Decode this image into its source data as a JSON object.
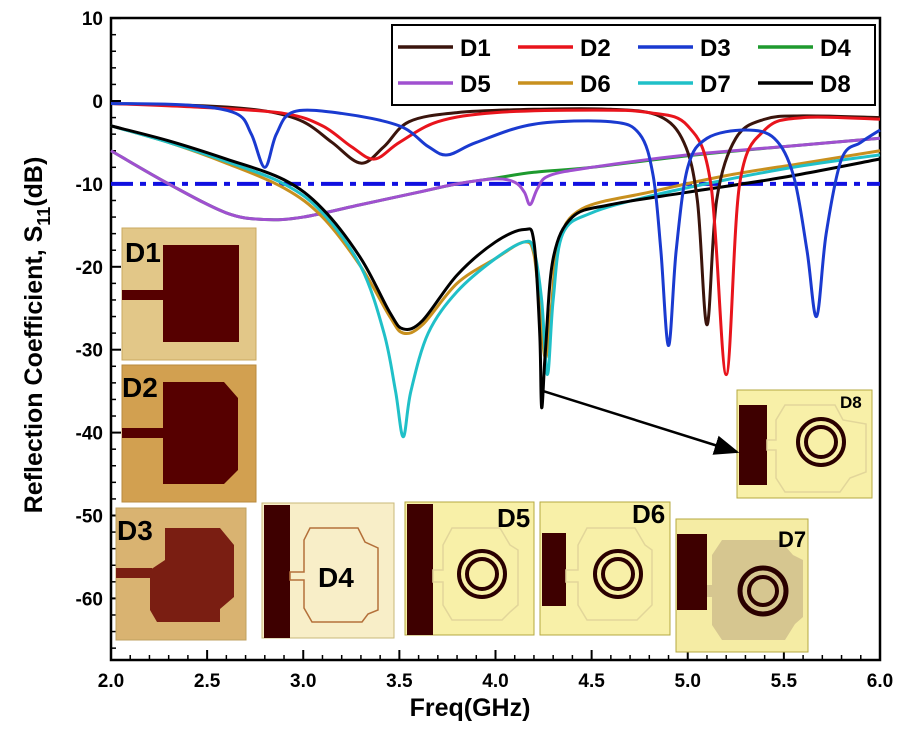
{
  "chart_data": {
    "type": "line",
    "title": "",
    "xlabel": "Freq(GHz)",
    "ylabel_main": "Reflection Coefficient, S",
    "ylabel_sub": "11",
    "ylabel_unit": "(dB)",
    "xlim": [
      2.0,
      6.0
    ],
    "ylim": [
      -65,
      10
    ],
    "xticks": [
      "2.0",
      "2.5",
      "3.0",
      "3.5",
      "4.0",
      "4.5",
      "5.0",
      "5.5",
      "6.0"
    ],
    "yticks": [
      "10",
      "0",
      "-10",
      "-20",
      "-30",
      "-40",
      "-50",
      "-60"
    ],
    "grid": false,
    "legend_position": "top-right",
    "reference_line": {
      "y": -10,
      "color": "#1010e0",
      "style": "dash-dot"
    },
    "series": [
      {
        "name": "D1",
        "color": "#3a140c",
        "points": [
          [
            2.0,
            -0.3
          ],
          [
            2.5,
            -0.6
          ],
          [
            2.8,
            -1.2
          ],
          [
            3.0,
            -2.5
          ],
          [
            3.15,
            -5
          ],
          [
            3.3,
            -7.5
          ],
          [
            3.42,
            -5.5
          ],
          [
            3.55,
            -2.5
          ],
          [
            3.8,
            -1.4
          ],
          [
            4.2,
            -1
          ],
          [
            4.6,
            -1
          ],
          [
            4.85,
            -1.8
          ],
          [
            4.98,
            -5
          ],
          [
            5.05,
            -12
          ],
          [
            5.1,
            -27
          ],
          [
            5.15,
            -12
          ],
          [
            5.25,
            -4.5
          ],
          [
            5.4,
            -2.2
          ],
          [
            5.6,
            -1.8
          ],
          [
            6.0,
            -2
          ]
        ]
      },
      {
        "name": "D2",
        "color": "#e8141c",
        "points": [
          [
            2.0,
            -0.3
          ],
          [
            2.5,
            -0.8
          ],
          [
            2.9,
            -1.5
          ],
          [
            3.1,
            -3
          ],
          [
            3.25,
            -5.5
          ],
          [
            3.37,
            -7
          ],
          [
            3.5,
            -5
          ],
          [
            3.7,
            -2.5
          ],
          [
            4.0,
            -1.4
          ],
          [
            4.5,
            -1.1
          ],
          [
            4.8,
            -1.4
          ],
          [
            5.0,
            -3
          ],
          [
            5.12,
            -10
          ],
          [
            5.2,
            -33
          ],
          [
            5.27,
            -10
          ],
          [
            5.4,
            -3.5
          ],
          [
            5.6,
            -2
          ],
          [
            6.0,
            -2.2
          ]
        ]
      },
      {
        "name": "D3",
        "color": "#1a3ad0",
        "points": [
          [
            2.0,
            -0.3
          ],
          [
            2.4,
            -0.5
          ],
          [
            2.65,
            -1.5
          ],
          [
            2.73,
            -4
          ],
          [
            2.8,
            -8
          ],
          [
            2.86,
            -4
          ],
          [
            2.95,
            -1.3
          ],
          [
            3.2,
            -1.5
          ],
          [
            3.5,
            -3
          ],
          [
            3.65,
            -5.5
          ],
          [
            3.75,
            -6.5
          ],
          [
            3.9,
            -5
          ],
          [
            4.2,
            -2.8
          ],
          [
            4.6,
            -2.5
          ],
          [
            4.75,
            -4
          ],
          [
            4.82,
            -9
          ],
          [
            4.86,
            -18
          ],
          [
            4.9,
            -29.5
          ],
          [
            4.94,
            -18
          ],
          [
            5.0,
            -8
          ],
          [
            5.1,
            -4.5
          ],
          [
            5.3,
            -3.5
          ],
          [
            5.45,
            -4.5
          ],
          [
            5.55,
            -9
          ],
          [
            5.62,
            -18
          ],
          [
            5.67,
            -26
          ],
          [
            5.72,
            -16
          ],
          [
            5.8,
            -7
          ],
          [
            5.9,
            -5
          ],
          [
            6.0,
            -3.5
          ]
        ]
      },
      {
        "name": "D4",
        "color": "#1e9a2e",
        "points": [
          [
            2.0,
            -6
          ],
          [
            2.3,
            -10
          ],
          [
            2.6,
            -13.5
          ],
          [
            2.8,
            -14.3
          ],
          [
            3.0,
            -14
          ],
          [
            3.3,
            -12.5
          ],
          [
            3.6,
            -11
          ],
          [
            3.8,
            -10
          ],
          [
            4.0,
            -9.3
          ],
          [
            4.2,
            -8.6
          ],
          [
            4.5,
            -8
          ],
          [
            5.0,
            -6.6
          ],
          [
            5.5,
            -5.5
          ],
          [
            6.0,
            -4.5
          ]
        ]
      },
      {
        "name": "D5",
        "color": "#a050d0",
        "points": [
          [
            2.0,
            -6
          ],
          [
            2.3,
            -10
          ],
          [
            2.6,
            -13.5
          ],
          [
            2.8,
            -14.3
          ],
          [
            3.0,
            -14
          ],
          [
            3.3,
            -12.5
          ],
          [
            3.6,
            -11
          ],
          [
            3.8,
            -10
          ],
          [
            4.0,
            -9.4
          ],
          [
            4.1,
            -9.8
          ],
          [
            4.15,
            -11
          ],
          [
            4.18,
            -12.5
          ],
          [
            4.22,
            -10.5
          ],
          [
            4.28,
            -9
          ],
          [
            4.5,
            -8
          ],
          [
            5.0,
            -6.5
          ],
          [
            5.5,
            -5.5
          ],
          [
            6.0,
            -4.5
          ]
        ]
      },
      {
        "name": "D6",
        "color": "#c8901e",
        "points": [
          [
            2.0,
            -3
          ],
          [
            2.3,
            -5
          ],
          [
            2.6,
            -7.5
          ],
          [
            2.9,
            -10.5
          ],
          [
            3.1,
            -14
          ],
          [
            3.3,
            -20
          ],
          [
            3.45,
            -26
          ],
          [
            3.52,
            -28
          ],
          [
            3.62,
            -27
          ],
          [
            3.8,
            -22
          ],
          [
            4.0,
            -19
          ],
          [
            4.15,
            -17
          ],
          [
            4.2,
            -18.5
          ],
          [
            4.23,
            -25
          ],
          [
            4.26,
            -31
          ],
          [
            4.29,
            -25
          ],
          [
            4.33,
            -17
          ],
          [
            4.45,
            -13
          ],
          [
            4.8,
            -11
          ],
          [
            5.2,
            -9
          ],
          [
            5.6,
            -7.5
          ],
          [
            6.0,
            -6
          ]
        ]
      },
      {
        "name": "D7",
        "color": "#20c0c8",
        "points": [
          [
            2.0,
            -3
          ],
          [
            2.3,
            -5
          ],
          [
            2.6,
            -7.3
          ],
          [
            2.9,
            -10
          ],
          [
            3.1,
            -13.5
          ],
          [
            3.3,
            -20
          ],
          [
            3.42,
            -28
          ],
          [
            3.48,
            -35
          ],
          [
            3.52,
            -40.5
          ],
          [
            3.56,
            -35
          ],
          [
            3.65,
            -28
          ],
          [
            3.8,
            -23
          ],
          [
            4.0,
            -19
          ],
          [
            4.15,
            -17
          ],
          [
            4.2,
            -18
          ],
          [
            4.24,
            -24
          ],
          [
            4.27,
            -33
          ],
          [
            4.3,
            -24
          ],
          [
            4.35,
            -16
          ],
          [
            4.5,
            -13.5
          ],
          [
            4.8,
            -11.5
          ],
          [
            5.2,
            -9.5
          ],
          [
            5.6,
            -7.8
          ],
          [
            6.0,
            -6.5
          ]
        ]
      },
      {
        "name": "D8",
        "color": "#000000",
        "points": [
          [
            2.0,
            -3
          ],
          [
            2.3,
            -4.8
          ],
          [
            2.6,
            -7
          ],
          [
            2.9,
            -9.5
          ],
          [
            3.1,
            -13
          ],
          [
            3.3,
            -19
          ],
          [
            3.45,
            -25.5
          ],
          [
            3.52,
            -27.5
          ],
          [
            3.62,
            -26.5
          ],
          [
            3.8,
            -21
          ],
          [
            4.0,
            -17
          ],
          [
            4.15,
            -15.5
          ],
          [
            4.2,
            -17
          ],
          [
            4.23,
            -28
          ],
          [
            4.24,
            -37
          ],
          [
            4.26,
            -30
          ],
          [
            4.3,
            -19
          ],
          [
            4.4,
            -14
          ],
          [
            4.6,
            -12.5
          ],
          [
            5.0,
            -11
          ],
          [
            5.5,
            -9.2
          ],
          [
            6.0,
            -7
          ]
        ]
      }
    ],
    "annotation_arrow": {
      "from": [
        4.25,
        -35
      ],
      "to_label": "D8"
    },
    "inset_labels": [
      "D1",
      "D2",
      "D3",
      "D4",
      "D5",
      "D6",
      "D7",
      "D8"
    ]
  }
}
